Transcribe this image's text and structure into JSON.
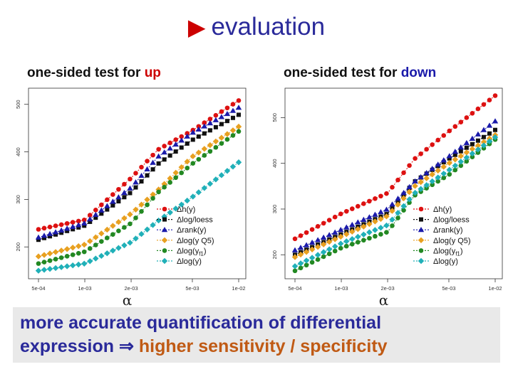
{
  "slide": {
    "title": "evaluation",
    "bottom_line1": "more accurate quantification of differential",
    "bottom_line2_prefix": "expression ",
    "bottom_arrow": "⇒",
    "bottom_line2_highlight": "higher sensitivity / specificity",
    "colors": {
      "title": "#2a2a9a",
      "accent_red": "#cc0000",
      "highlight": "#c05a14",
      "box": "#e9e9e9"
    }
  },
  "left_subtitle": {
    "text": "one-sided test for ",
    "direction": "up"
  },
  "right_subtitle": {
    "text": "one-sided test for ",
    "direction": "down"
  },
  "chart_data": [
    {
      "type": "line",
      "xlabel": "α",
      "ylabel": "",
      "x_scale": "log",
      "xlim": [
        0.0005,
        0.01
      ],
      "ylim": [
        145,
        525
      ],
      "x_ticks": [
        0.0005,
        0.001,
        0.002,
        0.005,
        0.01
      ],
      "x_tick_labels": [
        "5e-04",
        "1e-03",
        "2e-03",
        "5e-03",
        "1e-02"
      ],
      "y_ticks": [
        200,
        300,
        400,
        500
      ],
      "y_tick_labels": [
        "200",
        "300",
        "400",
        "500"
      ],
      "legend_position": "bottom-right",
      "series": [
        {
          "name": "Δh(y)",
          "color": "#dd1111",
          "marker": "circle",
          "x": [
            0.0005,
            0.001,
            0.002,
            0.003,
            0.005,
            0.01
          ],
          "y": [
            237,
            257,
            345,
            405,
            445,
            508
          ]
        },
        {
          "name": "Δlog/loess",
          "color": "#111111",
          "marker": "square",
          "x": [
            0.0005,
            0.001,
            0.002,
            0.003,
            0.005,
            0.01
          ],
          "y": [
            215,
            245,
            315,
            375,
            425,
            478
          ]
        },
        {
          "name": "Δrank(y)",
          "color": "#1a1aaa",
          "marker": "triangle",
          "x": [
            0.0005,
            0.001,
            0.002,
            0.003,
            0.005,
            0.01
          ],
          "y": [
            220,
            250,
            325,
            390,
            440,
            493
          ]
        },
        {
          "name": "Δlog(y Q5)",
          "color": "#e8a020",
          "marker": "diamond",
          "x": [
            0.0005,
            0.001,
            0.002,
            0.003,
            0.005,
            0.01
          ],
          "y": [
            180,
            205,
            270,
            320,
            390,
            453
          ]
        },
        {
          "name": "Δlog(y",
          "name_sub": "f1",
          "name_suffix": ")",
          "color": "#228822",
          "marker": "circle",
          "x": [
            0.0005,
            0.001,
            0.002,
            0.003,
            0.005,
            0.01
          ],
          "y": [
            165,
            190,
            250,
            315,
            375,
            443
          ]
        },
        {
          "name": "Δlog(y)",
          "color": "#20b0b8",
          "marker": "diamond",
          "x": [
            0.0005,
            0.001,
            0.002,
            0.003,
            0.005,
            0.01
          ],
          "y": [
            150,
            165,
            210,
            255,
            305,
            378
          ]
        }
      ]
    },
    {
      "type": "line",
      "xlabel": "α",
      "ylabel": "",
      "x_scale": "log",
      "xlim": [
        0.0005,
        0.01
      ],
      "ylim": [
        160,
        555
      ],
      "x_ticks": [
        0.0005,
        0.001,
        0.002,
        0.005,
        0.01
      ],
      "x_tick_labels": [
        "5e-04",
        "1e-03",
        "2e-03",
        "5e-03",
        "1e-02"
      ],
      "y_ticks": [
        200,
        300,
        400,
        500
      ],
      "y_tick_labels": [
        "200",
        "300",
        "400",
        "500"
      ],
      "legend_position": "bottom-right",
      "series": [
        {
          "name": "Δh(y)",
          "color": "#dd1111",
          "marker": "circle",
          "x": [
            0.0005,
            0.001,
            0.002,
            0.003,
            0.005,
            0.01
          ],
          "y": [
            235,
            290,
            335,
            410,
            470,
            548
          ]
        },
        {
          "name": "Δlog/loess",
          "color": "#111111",
          "marker": "square",
          "x": [
            0.0005,
            0.001,
            0.002,
            0.003,
            0.005,
            0.01
          ],
          "y": [
            200,
            245,
            290,
            360,
            410,
            473
          ]
        },
        {
          "name": "Δrank(y)",
          "color": "#1a1aaa",
          "marker": "triangle",
          "x": [
            0.0005,
            0.001,
            0.002,
            0.003,
            0.005,
            0.01
          ],
          "y": [
            210,
            255,
            300,
            360,
            415,
            492
          ]
        },
        {
          "name": "Δlog(y Q5)",
          "color": "#e8a020",
          "marker": "diamond",
          "x": [
            0.0005,
            0.001,
            0.002,
            0.003,
            0.005,
            0.01
          ],
          "y": [
            195,
            240,
            285,
            350,
            400,
            462
          ]
        },
        {
          "name": "Δlog(y",
          "name_sub": "f1",
          "name_suffix": ")",
          "color": "#228822",
          "marker": "circle",
          "x": [
            0.0005,
            0.001,
            0.002,
            0.003,
            0.005,
            0.01
          ],
          "y": [
            165,
            215,
            250,
            330,
            375,
            452
          ]
        },
        {
          "name": "Δlog(y)",
          "color": "#20b0b8",
          "marker": "diamond",
          "x": [
            0.0005,
            0.001,
            0.002,
            0.003,
            0.005,
            0.01
          ],
          "y": [
            175,
            225,
            265,
            335,
            385,
            457
          ]
        }
      ]
    }
  ]
}
